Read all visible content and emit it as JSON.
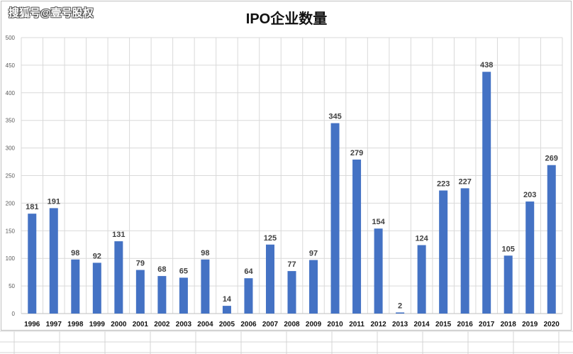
{
  "watermark": "搜狐号@壹号股权",
  "chart_data": {
    "type": "bar",
    "title": "IPO企业数量",
    "xlabel": "",
    "ylabel": "",
    "ylim": [
      0,
      500
    ],
    "yticks": [
      0,
      50,
      100,
      150,
      200,
      250,
      300,
      350,
      400,
      450,
      500
    ],
    "grid": true,
    "legend": "none",
    "bar_color": "#4472C4",
    "categories": [
      "1996",
      "1997",
      "1998",
      "1999",
      "2000",
      "2001",
      "2002",
      "2003",
      "2004",
      "2005",
      "2006",
      "2007",
      "2008",
      "2009",
      "2010",
      "2011",
      "2012",
      "2013",
      "2014",
      "2015",
      "2016",
      "2017",
      "2018",
      "2019",
      "2020"
    ],
    "values": [
      181,
      191,
      98,
      92,
      131,
      79,
      68,
      65,
      98,
      14,
      64,
      125,
      77,
      97,
      345,
      279,
      154,
      2,
      124,
      223,
      227,
      438,
      105,
      203,
      269
    ]
  }
}
